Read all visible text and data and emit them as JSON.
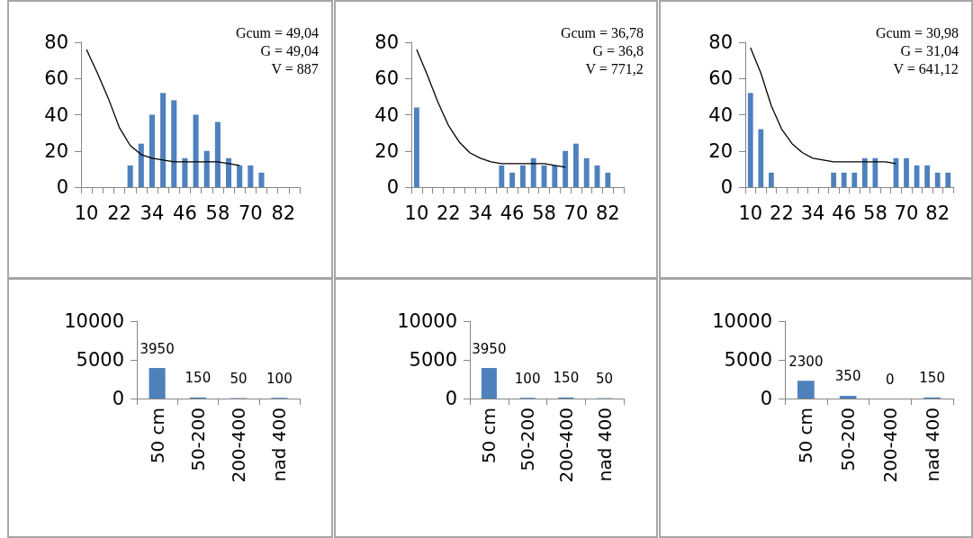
{
  "chart_data": [
    {
      "type": "bar",
      "categories": [
        "10",
        null,
        null,
        "22",
        null,
        null,
        "34",
        null,
        null,
        "46",
        null,
        null,
        "58",
        null,
        null,
        "70",
        null,
        null,
        "82",
        null
      ],
      "ylim": [
        0,
        80
      ],
      "yticks": [
        0,
        20,
        40,
        60,
        80
      ],
      "annotations": [
        "Gcum = 49,04",
        "G = 49,04",
        "V = 887"
      ],
      "series": [
        {
          "color": "#4f81bd",
          "values": [
            null,
            null,
            null,
            null,
            12,
            24,
            40,
            52,
            48,
            16,
            40,
            20,
            36,
            16,
            12,
            12,
            8,
            null,
            null,
            null
          ]
        },
        {
          "type": "line",
          "color": "#000000",
          "marker": "none",
          "values": [
            76,
            63,
            49,
            33,
            23,
            18,
            16,
            15,
            14,
            14,
            14,
            14,
            14,
            13,
            12,
            null,
            null,
            null,
            null,
            null
          ]
        }
      ]
    },
    {
      "type": "bar",
      "categories": [
        "10",
        null,
        null,
        "22",
        null,
        null,
        "34",
        null,
        null,
        "46",
        null,
        null,
        "58",
        null,
        null,
        "70",
        null,
        null,
        "82",
        null
      ],
      "ylim": [
        0,
        80
      ],
      "yticks": [
        0,
        20,
        40,
        60,
        80
      ],
      "annotations": [
        "Gcum = 36,78",
        "G = 36,8",
        "V = 771,2"
      ],
      "series": [
        {
          "color": "#4f81bd",
          "values": [
            44,
            null,
            null,
            null,
            null,
            null,
            null,
            null,
            12,
            8,
            12,
            16,
            12,
            12,
            20,
            24,
            16,
            12,
            8,
            null
          ]
        },
        {
          "type": "line",
          "color": "#000000",
          "marker": "none",
          "values": [
            76,
            62,
            47,
            34,
            25,
            19,
            16,
            14,
            13,
            13,
            13,
            13,
            13,
            12,
            11,
            null,
            null,
            null,
            null,
            null
          ]
        }
      ]
    },
    {
      "type": "bar",
      "categories": [
        "10",
        null,
        null,
        "22",
        null,
        null,
        "34",
        null,
        null,
        "46",
        null,
        null,
        "58",
        null,
        null,
        "70",
        null,
        null,
        "82",
        null
      ],
      "ylim": [
        0,
        80
      ],
      "yticks": [
        0,
        20,
        40,
        60,
        80
      ],
      "annotations": [
        "Gcum = 30,98",
        "G = 31,04",
        "V = 641,12"
      ],
      "series": [
        {
          "color": "#4f81bd",
          "values": [
            52,
            32,
            8,
            null,
            null,
            null,
            null,
            null,
            8,
            8,
            8,
            16,
            16,
            null,
            16,
            16,
            12,
            12,
            8,
            8
          ]
        },
        {
          "type": "line",
          "color": "#000000",
          "marker": "none",
          "values": [
            77,
            63,
            45,
            32,
            24,
            19,
            16,
            15,
            14,
            14,
            14,
            14,
            14,
            14,
            13,
            null,
            null,
            null,
            null,
            null
          ]
        }
      ]
    },
    {
      "type": "bar",
      "categories": [
        "50 cm",
        "50-200",
        "200-400",
        "nad 400"
      ],
      "ylim": [
        0,
        10000
      ],
      "yticks": [
        0,
        5000,
        10000
      ],
      "data_labels": true,
      "series": [
        {
          "color": "#4f81bd",
          "values": [
            3950,
            150,
            50,
            100
          ]
        }
      ]
    },
    {
      "type": "bar",
      "categories": [
        "50 cm",
        "50-200",
        "200-400",
        "nad 400"
      ],
      "ylim": [
        0,
        10000
      ],
      "yticks": [
        0,
        5000,
        10000
      ],
      "data_labels": true,
      "series": [
        {
          "color": "#4f81bd",
          "values": [
            3950,
            100,
            150,
            50
          ]
        }
      ]
    },
    {
      "type": "bar",
      "categories": [
        "50 cm",
        "50-200",
        "200-400",
        "nad 400"
      ],
      "ylim": [
        0,
        10000
      ],
      "yticks": [
        0,
        5000,
        10000
      ],
      "data_labels": true,
      "series": [
        {
          "color": "#4f81bd",
          "values": [
            2300,
            350,
            0,
            150
          ]
        }
      ]
    }
  ]
}
